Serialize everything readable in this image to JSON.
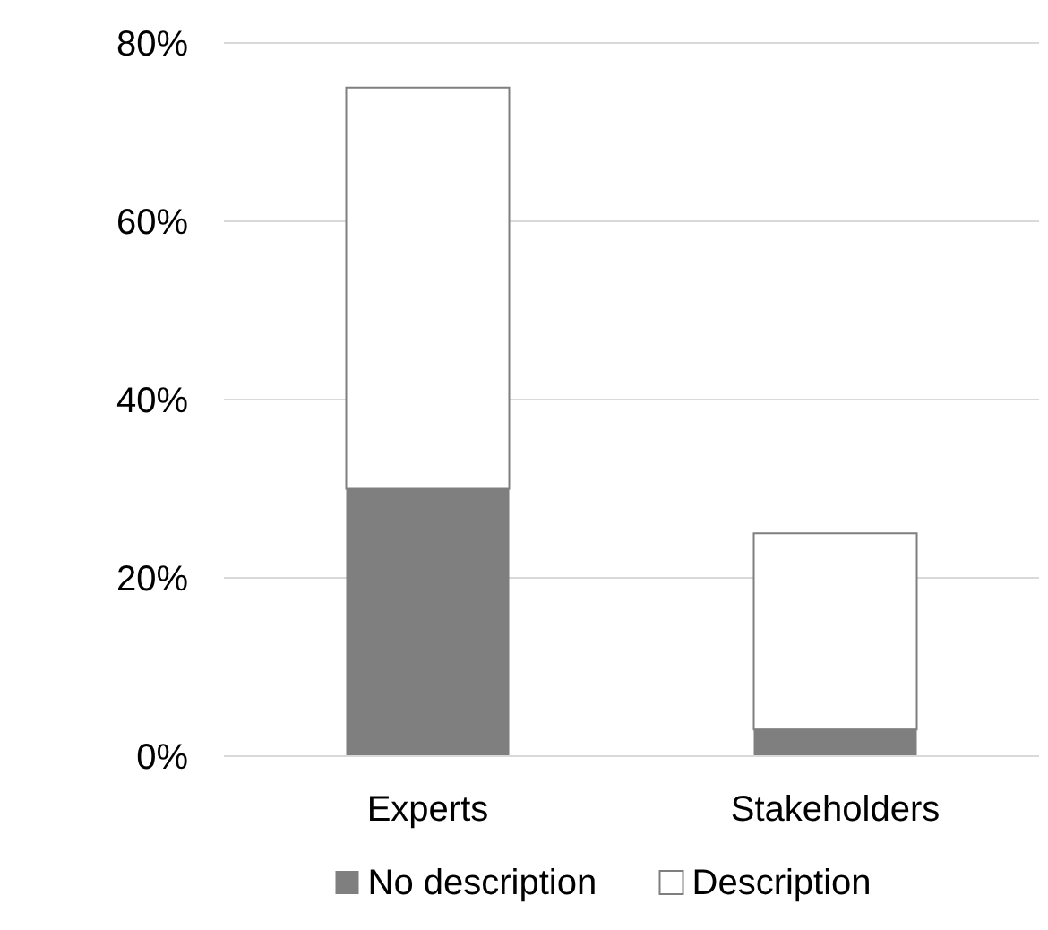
{
  "chart_data": {
    "type": "bar",
    "stacked": true,
    "categories": [
      "Experts",
      "Stakeholders"
    ],
    "series": [
      {
        "name": "No description",
        "color": "#7f7f7f",
        "values": [
          30,
          3
        ]
      },
      {
        "name": "Description",
        "color": "#ffffff",
        "values": [
          45,
          22
        ]
      }
    ],
    "ylim": [
      0,
      80
    ],
    "yticks": [
      {
        "value": 0,
        "label": "0%"
      },
      {
        "value": 20,
        "label": "20%"
      },
      {
        "value": 40,
        "label": "40%"
      },
      {
        "value": 60,
        "label": "60%"
      },
      {
        "value": 80,
        "label": "80%"
      }
    ],
    "grid": "y",
    "legend": "bottom"
  }
}
